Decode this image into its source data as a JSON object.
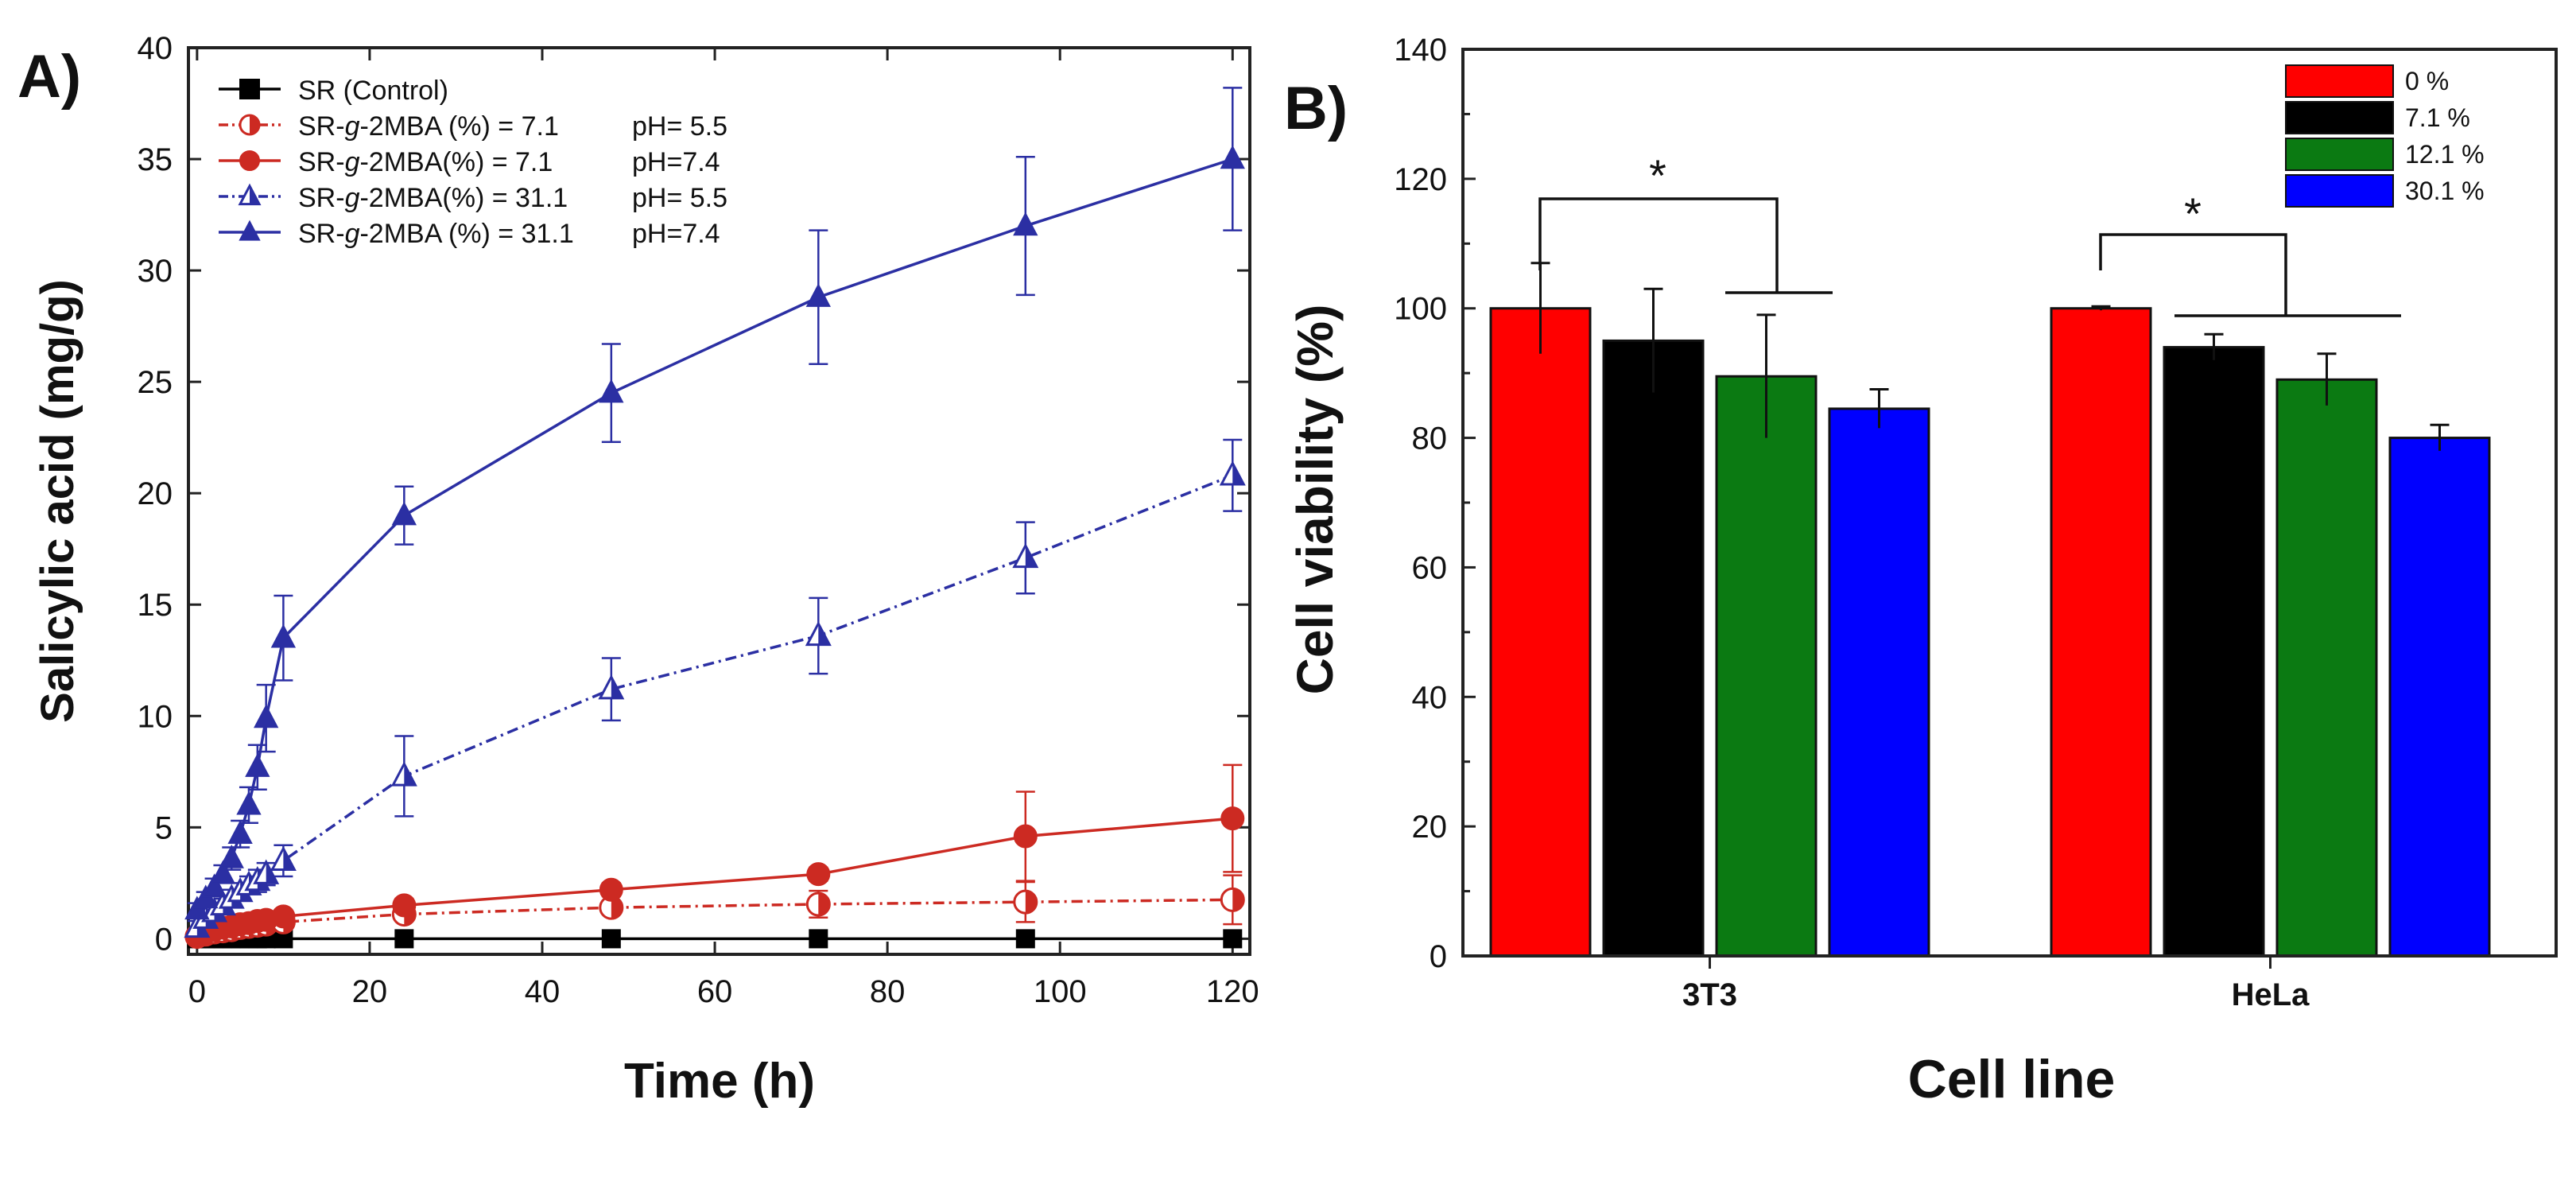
{
  "chart_data": [
    {
      "panel_label": "A)",
      "type": "line",
      "xlabel": "Time (h)",
      "ylabel": "Salicylic acid (mg/g)",
      "xlim": [
        -1,
        122
      ],
      "ylim": [
        -0.7,
        40
      ],
      "xticks": [
        0,
        20,
        40,
        60,
        80,
        100,
        120
      ],
      "yticks": [
        0,
        5,
        10,
        15,
        20,
        25,
        30,
        35,
        40
      ],
      "legend_position": "top-left",
      "series": [
        {
          "name": "SR  (Control)",
          "legend_prefix": "SR  (Control)",
          "legend_ph": "",
          "color": "#000000",
          "marker": "square",
          "filled": "full",
          "dashed": false,
          "x": [
            0,
            1,
            2,
            3,
            4,
            5,
            6,
            7,
            8,
            10,
            24,
            48,
            72,
            96,
            120
          ],
          "y": [
            0,
            0,
            0,
            0,
            0,
            0,
            0,
            0,
            0,
            0,
            0,
            0,
            0,
            0,
            0
          ],
          "err": [
            0,
            0,
            0,
            0,
            0,
            0,
            0,
            0,
            0,
            0,
            0,
            0,
            0,
            0,
            0
          ]
        },
        {
          "name": "SR-g-2MBA (%) = 7.1 pH= 5.5",
          "legend_prefix": "SR-",
          "legend_italic": "g",
          "legend_suffix": "-2MBA (%) =  7.1",
          "legend_ph": "pH= 5.5",
          "color": "#cc2a22",
          "marker": "circle",
          "filled": "half",
          "dashed": true,
          "x": [
            0,
            1,
            2,
            3,
            4,
            5,
            6,
            7,
            8,
            10,
            24,
            48,
            72,
            96,
            120
          ],
          "y": [
            0.1,
            0.2,
            0.3,
            0.35,
            0.4,
            0.5,
            0.55,
            0.6,
            0.65,
            0.75,
            1.1,
            1.4,
            1.55,
            1.65,
            1.75
          ],
          "err": [
            0,
            0,
            0,
            0,
            0,
            0,
            0,
            0,
            0,
            0.2,
            0.3,
            0.3,
            0.6,
            0.9,
            1.1
          ]
        },
        {
          "name": "SR-g-2MBA(%) = 7.1 pH=7.4",
          "legend_prefix": "SR-",
          "legend_italic": "g",
          "legend_suffix": "-2MBA(%) =  7.1",
          "legend_ph": "pH=7.4",
          "color": "#cc2a22",
          "marker": "circle",
          "filled": "full",
          "dashed": false,
          "x": [
            0,
            1,
            2,
            3,
            4,
            5,
            6,
            7,
            8,
            10,
            24,
            48,
            72,
            96,
            120
          ],
          "y": [
            0.1,
            0.3,
            0.4,
            0.5,
            0.55,
            0.65,
            0.7,
            0.8,
            0.85,
            1.0,
            1.5,
            2.2,
            2.9,
            4.6,
            5.4
          ],
          "err": [
            0,
            0,
            0,
            0,
            0,
            0,
            0,
            0,
            0,
            0.2,
            0.3,
            0.3,
            0.3,
            2.0,
            2.4
          ]
        },
        {
          "name": "SR-g-2MBA(%) = 31.1 pH= 5.5",
          "legend_prefix": "SR-",
          "legend_italic": "g",
          "legend_suffix": "-2MBA(%) = 31.1",
          "legend_ph": "pH= 5.5",
          "color": "#2b2fa3",
          "marker": "triangle",
          "filled": "half",
          "dashed": true,
          "x": [
            0,
            1,
            2,
            3,
            4,
            5,
            6,
            7,
            8,
            10,
            24,
            48,
            72,
            96,
            120
          ],
          "y": [
            0.5,
            0.9,
            1.2,
            1.5,
            1.8,
            2.1,
            2.4,
            2.6,
            2.9,
            3.5,
            7.3,
            11.2,
            13.6,
            17.1,
            20.8
          ],
          "err": [
            0.3,
            0.3,
            0.3,
            0.3,
            0.4,
            0.4,
            0.4,
            0.5,
            0.5,
            0.7,
            1.8,
            1.4,
            1.7,
            1.6,
            1.6
          ]
        },
        {
          "name": "SR-g-2MBA (%) = 31.1 pH=7.4",
          "legend_prefix": "SR-",
          "legend_italic": "g",
          "legend_suffix": "-2MBA (%) = 31.1",
          "legend_ph": "pH=7.4",
          "color": "#2b2fa3",
          "marker": "triangle",
          "filled": "full",
          "dashed": false,
          "x": [
            0,
            1,
            2,
            3,
            4,
            5,
            6,
            7,
            8,
            10,
            24,
            48,
            72,
            96,
            120
          ],
          "y": [
            1.3,
            1.8,
            2.3,
            2.9,
            3.6,
            4.7,
            6.0,
            7.7,
            9.9,
            13.5,
            19.0,
            24.5,
            28.8,
            32.0,
            35.0
          ],
          "err": [
            0.3,
            0.3,
            0.4,
            0.4,
            0.5,
            0.6,
            0.8,
            1.0,
            1.5,
            1.9,
            1.3,
            2.2,
            3.0,
            3.1,
            3.2
          ]
        }
      ]
    },
    {
      "panel_label": "B)",
      "type": "bar",
      "xlabel": "Cell line",
      "ylabel": "Cell viability (%)",
      "ylim": [
        0,
        140
      ],
      "yticks": [
        0,
        20,
        40,
        60,
        80,
        100,
        120,
        140
      ],
      "categories": [
        "3T3",
        "HeLa"
      ],
      "legend_position": "top-right",
      "series": [
        {
          "name": "0 %",
          "color": "#ff0000",
          "values": [
            100,
            100
          ],
          "err": [
            7,
            0.3
          ]
        },
        {
          "name": "7.1 %",
          "color": "#000000",
          "values": [
            95,
            94
          ],
          "err": [
            8,
            2
          ]
        },
        {
          "name": "12.1 %",
          "color": "#0b7a12",
          "values": [
            89.5,
            89
          ],
          "err": [
            9.5,
            4
          ]
        },
        {
          "name": "30.1 %",
          "color": "#0000ff",
          "values": [
            84.5,
            80
          ],
          "err": [
            3,
            2
          ]
        }
      ],
      "annotations": [
        "*",
        "*"
      ]
    }
  ]
}
